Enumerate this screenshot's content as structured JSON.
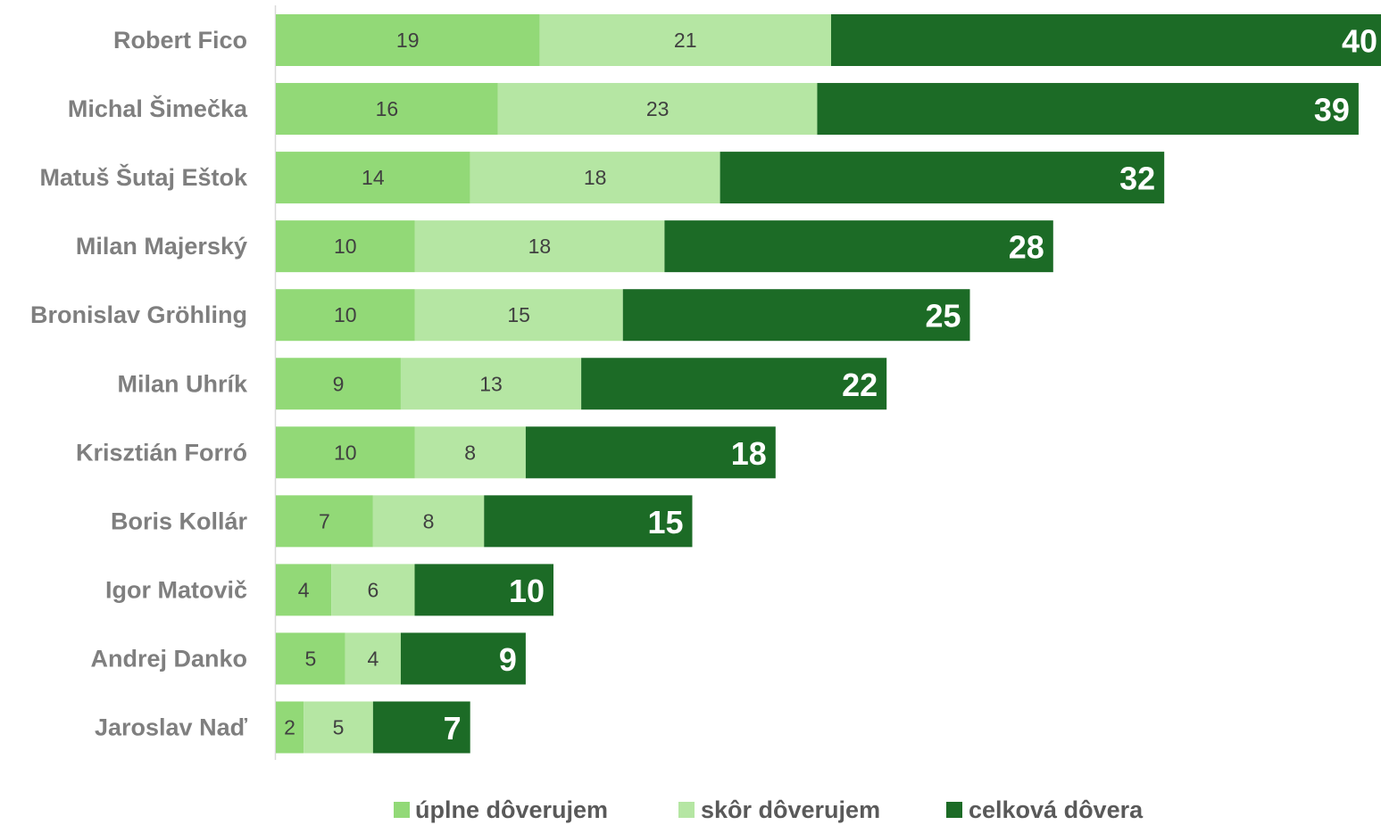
{
  "chart_data": {
    "type": "bar",
    "orientation": "horizontal",
    "stacked": true,
    "categories": [
      "Robert Fico",
      "Michal Šimečka",
      "Matuš Šutaj Eštok",
      "Milan Majerský",
      "Bronislav Gröhling",
      "Milan Uhrík",
      "Krisztián Forró",
      "Boris Kollár",
      "Igor Matovič",
      "Andrej Danko",
      "Jaroslav Naď"
    ],
    "series": [
      {
        "name": "úplne dôverujem",
        "color": "#92d977",
        "values": [
          19,
          16,
          14,
          10,
          10,
          9,
          10,
          7,
          4,
          5,
          2
        ]
      },
      {
        "name": "skôr dôverujem",
        "color": "#b5e6a3",
        "values": [
          21,
          23,
          18,
          18,
          15,
          13,
          8,
          8,
          6,
          4,
          5
        ]
      },
      {
        "name": "celková dôvera",
        "color": "#1c6b26",
        "values": [
          40,
          39,
          32,
          28,
          25,
          22,
          18,
          15,
          10,
          9,
          7
        ]
      }
    ],
    "xlim": [
      0,
      80
    ],
    "grid": false,
    "legend_position": "bottom"
  }
}
